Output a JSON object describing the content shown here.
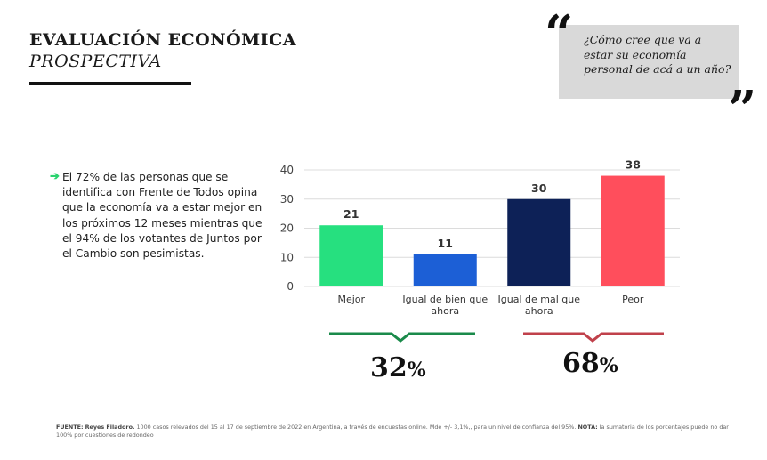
{
  "header": {
    "title": "EVALUACIÓN ECONÓMICA",
    "subtitle": "PROSPECTIVA"
  },
  "quote": {
    "open_mark": "“",
    "close_mark": "”",
    "text": "¿Cómo cree que va a estar su economía personal de acá a un año?"
  },
  "bullet": {
    "arrow": "➔",
    "text": "El 72% de las personas que se identifica con Frente de Todos opina que la economía va a estar mejor en los próximos 12 meses mientras que el 94% de los votantes de Juntos por el Cambio son pesimistas."
  },
  "summary": {
    "positive": {
      "number": "32",
      "symbol": "%"
    },
    "negative": {
      "number": "68",
      "symbol": "%"
    }
  },
  "footer": {
    "source_label": "FUENTE:",
    "source_name": "Reyes Filadoro.",
    "source_text": "1000 casos relevados del 15 al 17 de septiembre de 2022 en Argentina, a través de encuestas online. Mde +/- 3,1%,, para un nivel de confianza del 95%.",
    "note_label": "NOTA:",
    "note_text": "la sumatoria de los porcentajes puede no dar 100% por cuestiones de redondeo"
  },
  "colors": {
    "mejor": "#26e07f",
    "igual_bien": "#1c5fd6",
    "igual_mal": "#0d2157",
    "peor": "#ff4e5c",
    "green_accent": "#1a8a4a",
    "red_accent": "#c0414b"
  },
  "chart_data": {
    "type": "bar",
    "title": "",
    "xlabel": "",
    "ylabel": "",
    "categories": [
      "Mejor",
      "Igual de bien que ahora",
      "Igual de mal que ahora",
      "Peor"
    ],
    "category_lines": [
      [
        "Mejor"
      ],
      [
        "Igual de bien que",
        "ahora"
      ],
      [
        "Igual de mal que",
        "ahora"
      ],
      [
        "Peor"
      ]
    ],
    "values": [
      21,
      11,
      30,
      38
    ],
    "ylim": [
      0,
      40
    ],
    "yticks": [
      0,
      10,
      20,
      30,
      40
    ],
    "grid": true,
    "legend": "none"
  }
}
